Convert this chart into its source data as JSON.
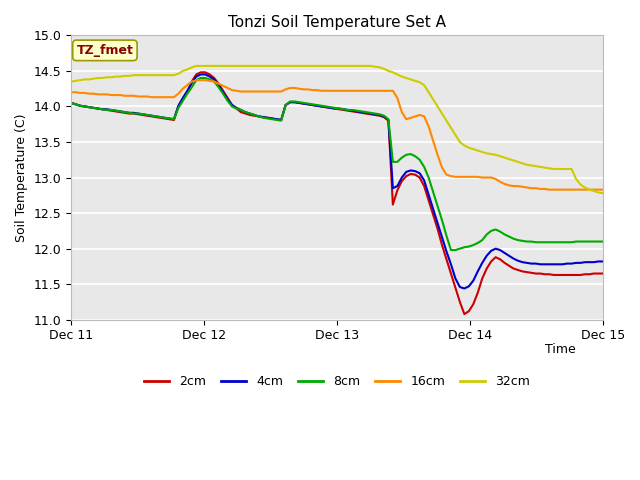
{
  "title": "Tonzi Soil Temperature Set A",
  "ylabel": "Soil Temperature (C)",
  "xlabel": "Time",
  "xlim": [
    0,
    96
  ],
  "ylim": [
    11.0,
    15.0
  ],
  "yticks": [
    11.0,
    11.5,
    12.0,
    12.5,
    13.0,
    13.5,
    14.0,
    14.5,
    15.0
  ],
  "xtick_positions": [
    0,
    24,
    48,
    72,
    96
  ],
  "xtick_labels": [
    "Dec 11",
    "Dec 12",
    "Dec 13",
    "Dec 14",
    "Dec 15"
  ],
  "fig_bg_color": "#f0f0f0",
  "axes_bg_color": "#e8e8e8",
  "grid_color": "#ffffff",
  "legend_label": "TZ_fmet",
  "legend_box_facecolor": "#ffffcc",
  "legend_box_edgecolor": "#999900",
  "legend_text_color": "#8b0000",
  "series": {
    "2cm": {
      "color": "#cc0000",
      "lw": 1.5
    },
    "4cm": {
      "color": "#0000cc",
      "lw": 1.5
    },
    "8cm": {
      "color": "#00aa00",
      "lw": 1.5
    },
    "16cm": {
      "color": "#ff8800",
      "lw": 1.5
    },
    "32cm": {
      "color": "#cccc00",
      "lw": 1.5
    }
  },
  "t_2cm": [
    14.05,
    14.03,
    14.01,
    14.0,
    13.99,
    13.98,
    13.97,
    13.96,
    13.95,
    13.94,
    13.93,
    13.92,
    13.91,
    13.9,
    13.9,
    13.89,
    13.88,
    13.87,
    13.86,
    13.85,
    13.84,
    13.83,
    13.82,
    13.81,
    14.0,
    14.1,
    14.2,
    14.35,
    14.45,
    14.48,
    14.48,
    14.45,
    14.4,
    14.32,
    14.22,
    14.12,
    14.02,
    13.97,
    13.92,
    13.9,
    13.88,
    13.87,
    13.86,
    13.85,
    13.84,
    13.83,
    13.82,
    13.81,
    14.02,
    14.06,
    14.06,
    14.05,
    14.04,
    14.03,
    14.02,
    14.01,
    14.0,
    13.99,
    13.98,
    13.97,
    13.96,
    13.95,
    13.94,
    13.93,
    13.92,
    13.91,
    13.9,
    13.89,
    13.88,
    13.87,
    13.85,
    13.8,
    12.62,
    12.82,
    12.95,
    13.02,
    13.05,
    13.04,
    13.0,
    12.88,
    12.68,
    12.48,
    12.28,
    12.05,
    11.85,
    11.65,
    11.45,
    11.25,
    11.08,
    11.12,
    11.22,
    11.38,
    11.58,
    11.72,
    11.82,
    11.88,
    11.85,
    11.8,
    11.76,
    11.72,
    11.7,
    11.68,
    11.67,
    11.66,
    11.65,
    11.65,
    11.64,
    11.64,
    11.63,
    11.63,
    11.63,
    11.63,
    11.63,
    11.63,
    11.63,
    11.64,
    11.64,
    11.65,
    11.65,
    11.65
  ],
  "t_4cm": [
    14.05,
    14.03,
    14.01,
    14.0,
    13.99,
    13.98,
    13.97,
    13.96,
    13.96,
    13.95,
    13.94,
    13.93,
    13.92,
    13.91,
    13.91,
    13.9,
    13.89,
    13.88,
    13.87,
    13.86,
    13.85,
    13.84,
    13.83,
    13.82,
    14.01,
    14.12,
    14.22,
    14.33,
    14.42,
    14.45,
    14.45,
    14.42,
    14.38,
    14.3,
    14.2,
    14.1,
    14.02,
    13.98,
    13.95,
    13.92,
    13.9,
    13.88,
    13.86,
    13.85,
    13.84,
    13.83,
    13.82,
    13.81,
    14.02,
    14.06,
    14.06,
    14.05,
    14.04,
    14.03,
    14.02,
    14.01,
    14.0,
    13.99,
    13.98,
    13.97,
    13.97,
    13.96,
    13.95,
    13.94,
    13.93,
    13.92,
    13.91,
    13.9,
    13.89,
    13.88,
    13.86,
    13.81,
    12.85,
    12.88,
    13.0,
    13.08,
    13.1,
    13.09,
    13.06,
    12.96,
    12.76,
    12.56,
    12.36,
    12.16,
    11.96,
    11.78,
    11.58,
    11.46,
    11.44,
    11.47,
    11.55,
    11.68,
    11.8,
    11.9,
    11.97,
    12.0,
    11.98,
    11.94,
    11.9,
    11.86,
    11.83,
    11.81,
    11.8,
    11.79,
    11.79,
    11.78,
    11.78,
    11.78,
    11.78,
    11.78,
    11.78,
    11.79,
    11.79,
    11.8,
    11.8,
    11.81,
    11.81,
    11.81,
    11.82,
    11.82
  ],
  "t_8cm": [
    14.05,
    14.03,
    14.01,
    14.0,
    13.99,
    13.98,
    13.97,
    13.96,
    13.95,
    13.95,
    13.94,
    13.93,
    13.92,
    13.91,
    13.9,
    13.9,
    13.89,
    13.88,
    13.87,
    13.86,
    13.85,
    13.84,
    13.83,
    13.82,
    13.98,
    14.08,
    14.18,
    14.27,
    14.37,
    14.4,
    14.4,
    14.38,
    14.35,
    14.27,
    14.18,
    14.08,
    14.0,
    13.97,
    13.95,
    13.92,
    13.9,
    13.88,
    13.86,
    13.84,
    13.83,
    13.82,
    13.81,
    13.8,
    14.02,
    14.07,
    14.07,
    14.06,
    14.05,
    14.04,
    14.03,
    14.02,
    14.01,
    14.0,
    13.99,
    13.98,
    13.97,
    13.96,
    13.95,
    13.95,
    13.94,
    13.93,
    13.92,
    13.91,
    13.9,
    13.89,
    13.87,
    13.82,
    13.22,
    13.22,
    13.28,
    13.32,
    13.33,
    13.3,
    13.25,
    13.15,
    13.0,
    12.8,
    12.6,
    12.4,
    12.18,
    11.98,
    11.98,
    12.0,
    12.02,
    12.03,
    12.05,
    12.08,
    12.12,
    12.2,
    12.25,
    12.27,
    12.24,
    12.2,
    12.17,
    12.14,
    12.12,
    12.11,
    12.1,
    12.1,
    12.09,
    12.09,
    12.09,
    12.09,
    12.09,
    12.09,
    12.09,
    12.09,
    12.09,
    12.1,
    12.1,
    12.1,
    12.1,
    12.1,
    12.1,
    12.1
  ],
  "t_16cm": [
    14.2,
    14.2,
    14.19,
    14.19,
    14.18,
    14.18,
    14.17,
    14.17,
    14.17,
    14.16,
    14.16,
    14.16,
    14.15,
    14.15,
    14.15,
    14.14,
    14.14,
    14.14,
    14.13,
    14.13,
    14.13,
    14.13,
    14.13,
    14.13,
    14.18,
    14.25,
    14.3,
    14.35,
    14.37,
    14.37,
    14.37,
    14.36,
    14.35,
    14.32,
    14.29,
    14.26,
    14.23,
    14.22,
    14.21,
    14.21,
    14.21,
    14.21,
    14.21,
    14.21,
    14.21,
    14.21,
    14.21,
    14.21,
    14.24,
    14.26,
    14.26,
    14.25,
    14.24,
    14.24,
    14.23,
    14.23,
    14.22,
    14.22,
    14.22,
    14.22,
    14.22,
    14.22,
    14.22,
    14.22,
    14.22,
    14.22,
    14.22,
    14.22,
    14.22,
    14.22,
    14.22,
    14.22,
    14.22,
    14.12,
    13.92,
    13.82,
    13.84,
    13.86,
    13.88,
    13.86,
    13.72,
    13.52,
    13.32,
    13.14,
    13.04,
    13.02,
    13.01,
    13.01,
    13.01,
    13.01,
    13.01,
    13.01,
    13.0,
    13.0,
    13.0,
    12.98,
    12.94,
    12.91,
    12.89,
    12.88,
    12.88,
    12.87,
    12.86,
    12.85,
    12.85,
    12.84,
    12.84,
    12.83,
    12.83,
    12.83,
    12.83,
    12.83,
    12.83,
    12.83,
    12.83,
    12.83,
    12.83,
    12.83,
    12.83,
    12.83
  ],
  "t_32cm": [
    14.35,
    14.36,
    14.37,
    14.38,
    14.38,
    14.39,
    14.4,
    14.4,
    14.41,
    14.41,
    14.42,
    14.42,
    14.43,
    14.43,
    14.44,
    14.44,
    14.44,
    14.44,
    14.44,
    14.44,
    14.44,
    14.44,
    14.44,
    14.44,
    14.46,
    14.5,
    14.52,
    14.55,
    14.57,
    14.57,
    14.57,
    14.57,
    14.57,
    14.57,
    14.57,
    14.57,
    14.57,
    14.57,
    14.57,
    14.57,
    14.57,
    14.57,
    14.57,
    14.57,
    14.57,
    14.57,
    14.57,
    14.57,
    14.57,
    14.57,
    14.57,
    14.57,
    14.57,
    14.57,
    14.57,
    14.57,
    14.57,
    14.57,
    14.57,
    14.57,
    14.57,
    14.57,
    14.57,
    14.57,
    14.57,
    14.57,
    14.57,
    14.57,
    14.56,
    14.55,
    14.53,
    14.5,
    14.48,
    14.45,
    14.42,
    14.4,
    14.38,
    14.36,
    14.34,
    14.3,
    14.2,
    14.1,
    14.0,
    13.9,
    13.8,
    13.7,
    13.6,
    13.5,
    13.45,
    13.42,
    13.4,
    13.38,
    13.36,
    13.34,
    13.33,
    13.32,
    13.3,
    13.28,
    13.26,
    13.24,
    13.22,
    13.2,
    13.18,
    13.17,
    13.16,
    13.15,
    13.14,
    13.13,
    13.12,
    13.12,
    13.12,
    13.12,
    13.12,
    12.98,
    12.9,
    12.86,
    12.83,
    12.81,
    12.79,
    12.78
  ]
}
